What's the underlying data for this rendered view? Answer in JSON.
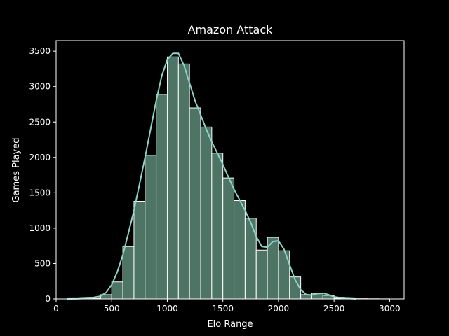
{
  "colors": {
    "background": "#000000",
    "foreground": "#ffffff",
    "bar_fill": "#4e7466",
    "bar_edge": "#ffffff",
    "kde_line": "#8dd3c7"
  },
  "chart_data": {
    "type": "bar",
    "title": "Amazon Attack",
    "xlabel": "Elo Range",
    "ylabel": "Games Played",
    "xlim": [
      0,
      3130
    ],
    "ylim": [
      0,
      3650
    ],
    "xticks": [
      0,
      500,
      1000,
      1500,
      2000,
      2500,
      3000
    ],
    "yticks": [
      0,
      500,
      1000,
      1500,
      2000,
      2500,
      3000,
      3500
    ],
    "grid": false,
    "legend": false,
    "bin_width": 100,
    "bins": [
      {
        "start": 100,
        "value": 5
      },
      {
        "start": 200,
        "value": 5
      },
      {
        "start": 300,
        "value": 10
      },
      {
        "start": 400,
        "value": 60
      },
      {
        "start": 500,
        "value": 240
      },
      {
        "start": 600,
        "value": 740
      },
      {
        "start": 700,
        "value": 1380
      },
      {
        "start": 800,
        "value": 2030
      },
      {
        "start": 900,
        "value": 2890
      },
      {
        "start": 1000,
        "value": 3420
      },
      {
        "start": 1100,
        "value": 3320
      },
      {
        "start": 1200,
        "value": 2700
      },
      {
        "start": 1300,
        "value": 2430
      },
      {
        "start": 1400,
        "value": 2060
      },
      {
        "start": 1500,
        "value": 1710
      },
      {
        "start": 1600,
        "value": 1390
      },
      {
        "start": 1700,
        "value": 1140
      },
      {
        "start": 1800,
        "value": 690
      },
      {
        "start": 1900,
        "value": 870
      },
      {
        "start": 2000,
        "value": 680
      },
      {
        "start": 2100,
        "value": 310
      },
      {
        "start": 2200,
        "value": 60
      },
      {
        "start": 2300,
        "value": 80
      },
      {
        "start": 2400,
        "value": 50
      },
      {
        "start": 2500,
        "value": 10
      },
      {
        "start": 2600,
        "value": 5
      },
      {
        "start": 2700,
        "value": 3
      },
      {
        "start": 2800,
        "value": 2
      },
      {
        "start": 2900,
        "value": 1
      }
    ],
    "kde": {
      "x": [
        100,
        200,
        300,
        400,
        450,
        500,
        550,
        600,
        650,
        700,
        750,
        800,
        850,
        900,
        950,
        1000,
        1050,
        1100,
        1150,
        1200,
        1250,
        1300,
        1350,
        1400,
        1450,
        1500,
        1550,
        1600,
        1650,
        1700,
        1750,
        1800,
        1850,
        1900,
        1950,
        2000,
        2050,
        2100,
        2150,
        2200,
        2250,
        2300,
        2350,
        2400,
        2450,
        2500,
        2600,
        2700
      ],
      "y": [
        0,
        2,
        10,
        40,
        90,
        200,
        380,
        620,
        930,
        1250,
        1620,
        2000,
        2400,
        2800,
        3150,
        3380,
        3470,
        3470,
        3300,
        3050,
        2800,
        2600,
        2400,
        2220,
        2060,
        1900,
        1720,
        1550,
        1400,
        1250,
        1080,
        880,
        740,
        730,
        810,
        820,
        700,
        480,
        270,
        130,
        60,
        55,
        75,
        80,
        60,
        30,
        8,
        0
      ]
    }
  }
}
